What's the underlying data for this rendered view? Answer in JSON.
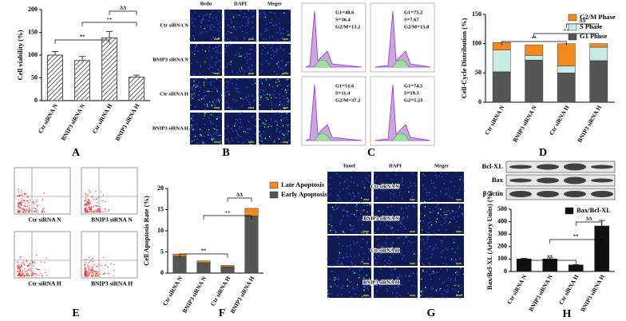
{
  "chart_data": [
    {
      "type": "bar",
      "panel": "A",
      "ylabel": "Cell viability (%)",
      "categories": [
        "Ctr siRNA N",
        "BNIP3 siRNA N",
        "Ctr siRNA H",
        "BNIP3 siRNA H"
      ],
      "values": [
        100,
        88,
        138,
        52
      ],
      "errors": [
        8,
        9,
        14,
        4
      ],
      "color": "#ffffff",
      "ylim": [
        0,
        200
      ],
      "yticks": [
        0,
        50,
        100,
        150,
        200
      ],
      "annotations": [
        "**",
        "++",
        "ΔΔ"
      ]
    },
    {
      "type": "stacked_bar",
      "panel": "D",
      "ylabel": "Cell-Cycle Distribution (%)",
      "categories": [
        "Ctr siRNA N",
        "BNIP3 siRNA N",
        "Ctr siRNA H",
        "BNIP3 siRNA H"
      ],
      "series": [
        {
          "name": "G1 Phase",
          "color": "#555555",
          "values": [
            52,
            72,
            50,
            71
          ]
        },
        {
          "name": "S Phase",
          "color": "#c8ebe4",
          "values": [
            37,
            8,
            12,
            23
          ]
        },
        {
          "name": "G2/M Phase",
          "color": "#f28a1e",
          "values": [
            13,
            18,
            38,
            6
          ]
        }
      ],
      "ylim": [
        0,
        150
      ],
      "yticks": [
        0,
        50,
        100,
        150
      ],
      "annotations": [
        "**",
        "++",
        "ΔΔ"
      ]
    },
    {
      "type": "stacked_bar",
      "panel": "F",
      "ylabel": "Cell Apoptosis Rate (%)",
      "categories": [
        "Ctr siRNA N",
        "BNIP3 siRNA N",
        "Ctr siRNA H",
        "BNIP3 siRNA H"
      ],
      "series": [
        {
          "name": "Early Apoptosis",
          "color": "#555555",
          "values": [
            4,
            2.5,
            1.5,
            13.5
          ]
        },
        {
          "name": "Late Apoptosis",
          "color": "#f28a1e",
          "values": [
            0.5,
            0.4,
            0.3,
            1.8
          ]
        }
      ],
      "ylim": [
        0,
        20
      ],
      "yticks": [
        0,
        5,
        10,
        15,
        20
      ],
      "annotations": [
        "**",
        "++",
        "ΔΔ"
      ]
    },
    {
      "type": "bar",
      "panel": "H",
      "ylabel": "Bax/Bcl-XL (Arbitrary Units) (%)",
      "categories": [
        "Ctr siRNA N",
        "BNIP3 siRNA N",
        "Ctr siRNA H",
        "BNIP3 siRNA H"
      ],
      "series": [
        {
          "name": "Bax/Bcl-XL",
          "color": "#111111",
          "values": [
            100,
            100,
            52,
            365
          ]
        }
      ],
      "errors": [
        5,
        10,
        3,
        45
      ],
      "ylim": [
        0,
        500
      ],
      "yticks": [
        0,
        100,
        200,
        300,
        400,
        500
      ],
      "annotations": [
        "**",
        "**",
        "ΔΔ"
      ]
    }
  ],
  "panels": {
    "B": {
      "letter": "B",
      "columns": [
        "Brdu",
        "DAPI",
        "Meger"
      ],
      "rows": [
        "Ctr siRNA N",
        "BNIP3 siRNA N",
        "Ctr siRNA H",
        "BNIP3 siRNA H"
      ]
    },
    "C": {
      "letter": "C",
      "boxes": [
        [
          "G1=48.6",
          "S=36.4",
          "G2/M=13.2"
        ],
        [
          "G1=75.2",
          "S=7.67",
          "G2/M=15.8"
        ],
        [
          "G1=51.6",
          "S=11.4",
          "G2/M=37.2"
        ],
        [
          "G1=74.5",
          "S=19.3",
          "G2=5.23"
        ]
      ]
    },
    "E": {
      "letter": "E",
      "labels": [
        "Ctr siRNA N",
        "BNIP3 siRNA N",
        "Ctr siRNA H",
        "BNIP3 siRNA H"
      ]
    },
    "G": {
      "letter": "G",
      "columns": [
        "Tunel",
        "DAPI",
        "Meger"
      ],
      "rows": [
        "Ctr siRNA N",
        "BNIP3 siRNA N",
        "Ctr siRNA H",
        "BNIP3 siRNA H"
      ]
    },
    "H": {
      "blots": [
        "Bcl-XL",
        "Bax",
        "β-actin"
      ]
    }
  }
}
